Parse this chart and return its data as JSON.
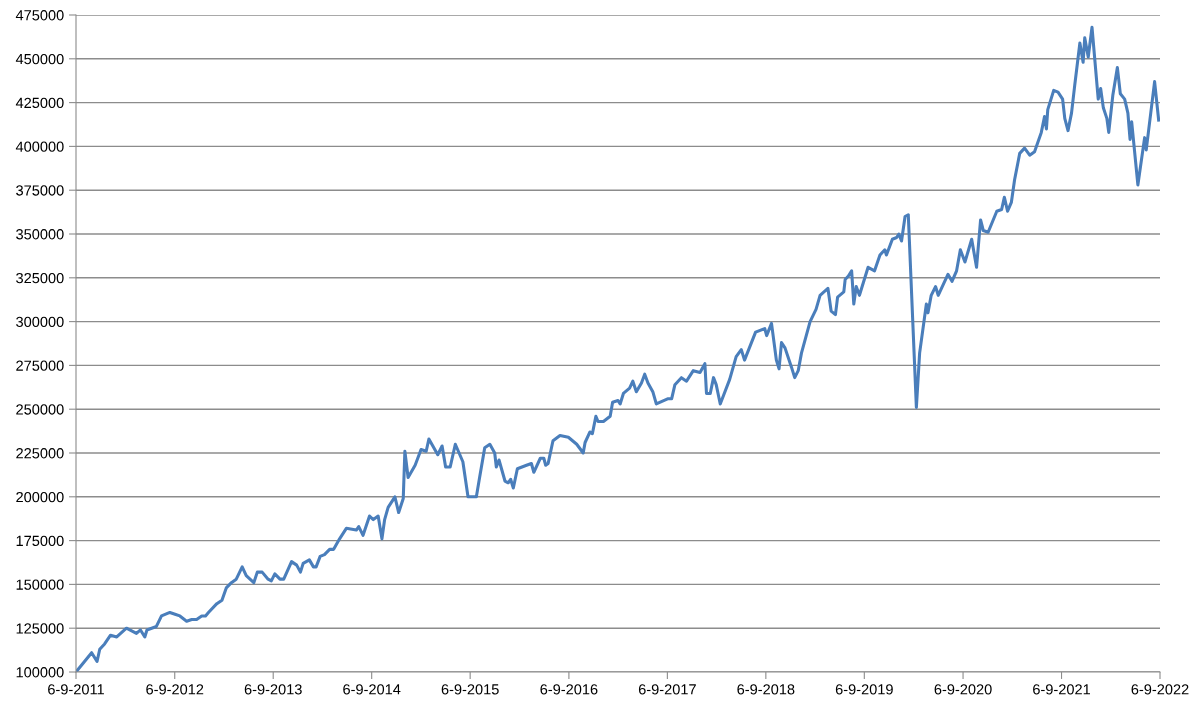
{
  "chart_data": {
    "type": "line",
    "x": [
      "2011-09-06",
      "2011-11-03",
      "2011-11-23",
      "2011-12-03",
      "2011-12-21",
      "2012-01-12",
      "2012-02-04",
      "2012-03-11",
      "2012-04-17",
      "2012-05-02",
      "2012-05-18",
      "2012-05-26",
      "2012-06-30",
      "2012-07-19",
      "2012-08-19",
      "2012-09-07",
      "2012-09-25",
      "2012-10-20",
      "2012-11-08",
      "2012-11-26",
      "2012-12-15",
      "2012-12-29",
      "2013-01-09",
      "2013-02-09",
      "2013-02-28",
      "2013-03-16",
      "2013-04-04",
      "2013-04-22",
      "2013-05-14",
      "2013-05-29",
      "2013-06-26",
      "2013-07-09",
      "2013-07-27",
      "2013-08-18",
      "2013-08-30",
      "2013-09-12",
      "2013-10-01",
      "2013-10-15",
      "2013-11-13",
      "2013-12-02",
      "2013-12-16",
      "2013-12-26",
      "2014-01-18",
      "2014-02-02",
      "2014-02-12",
      "2014-02-27",
      "2014-03-15",
      "2014-04-03",
      "2014-04-18",
      "2014-05-10",
      "2014-06-04",
      "2014-07-11",
      "2014-07-20",
      "2014-08-05",
      "2014-08-29",
      "2014-09-12",
      "2014-09-30",
      "2014-10-14",
      "2014-10-24",
      "2014-11-06",
      "2014-12-01",
      "2014-12-15",
      "2015-01-01",
      "2015-01-07",
      "2015-01-19",
      "2015-02-14",
      "2015-03-08",
      "2015-03-27",
      "2015-04-06",
      "2015-05-09",
      "2015-05-25",
      "2015-06-07",
      "2015-06-24",
      "2015-07-13",
      "2015-08-10",
      "2015-08-29",
      "2015-09-29",
      "2015-10-11",
      "2015-10-30",
      "2015-11-18",
      "2015-12-06",
      "2015-12-12",
      "2015-12-22",
      "2016-01-13",
      "2016-01-25",
      "2016-02-03",
      "2016-02-13",
      "2016-02-28",
      "2016-04-02",
      "2016-04-20",
      "2016-04-29",
      "2016-05-23",
      "2016-06-05",
      "2016-06-12",
      "2016-06-21",
      "2016-07-09",
      "2016-08-04",
      "2016-09-04",
      "2016-10-05",
      "2016-10-29",
      "2016-11-05",
      "2016-11-23",
      "2016-12-02",
      "2016-12-15",
      "2016-12-23",
      "2017-01-12",
      "2017-02-06",
      "2017-02-15",
      "2017-03-07",
      "2017-03-15",
      "2017-03-27",
      "2017-04-19",
      "2017-05-01",
      "2017-05-14",
      "2017-06-02",
      "2017-06-14",
      "2017-06-26",
      "2017-07-14",
      "2017-07-27",
      "2017-09-09",
      "2017-09-22",
      "2017-10-04",
      "2017-10-28",
      "2017-11-16",
      "2017-12-11",
      "2018-01-05",
      "2018-01-23",
      "2018-01-29",
      "2018-02-12",
      "2018-02-24",
      "2018-03-06",
      "2018-03-21",
      "2018-04-25",
      "2018-05-19",
      "2018-06-07",
      "2018-06-19",
      "2018-07-30",
      "2018-09-02",
      "2018-09-09",
      "2018-09-27",
      "2018-10-15",
      "2018-10-25",
      "2018-11-03",
      "2018-11-16",
      "2018-12-10",
      "2018-12-22",
      "2019-01-04",
      "2019-01-16",
      "2019-02-17",
      "2019-03-11",
      "2019-03-26",
      "2019-04-24",
      "2019-05-06",
      "2019-05-22",
      "2019-05-30",
      "2019-06-22",
      "2019-06-27",
      "2019-07-09",
      "2019-07-21",
      "2019-07-29",
      "2019-08-07",
      "2019-08-19",
      "2019-09-20",
      "2019-10-14",
      "2019-11-03",
      "2019-11-21",
      "2019-11-27",
      "2019-12-19",
      "2020-01-04",
      "2020-01-12",
      "2020-01-22",
      "2020-02-04",
      "2020-02-16",
      "2020-03-17",
      "2020-03-29",
      "2020-04-23",
      "2020-04-29",
      "2020-05-11",
      "2020-05-27",
      "2020-06-06",
      "2020-07-12",
      "2020-07-27",
      "2020-08-13",
      "2020-08-27",
      "2020-09-13",
      "2020-10-08",
      "2020-10-26",
      "2020-11-10",
      "2020-11-20",
      "2020-12-08",
      "2021-01-09",
      "2021-01-27",
      "2021-02-06",
      "2021-02-18",
      "2021-03-04",
      "2021-03-16",
      "2021-04-04",
      "2021-04-22",
      "2021-05-11",
      "2021-05-29",
      "2021-06-23",
      "2021-07-05",
      "2021-07-12",
      "2021-07-17",
      "2021-08-08",
      "2021-08-24",
      "2021-09-10",
      "2021-09-18",
      "2021-09-30",
      "2021-10-13",
      "2021-10-25",
      "2021-11-13",
      "2021-11-25",
      "2021-12-01",
      "2021-12-14",
      "2021-12-28",
      "2022-01-20",
      "2022-01-29",
      "2022-02-08",
      "2022-02-21",
      "2022-02-28",
      "2022-03-15",
      "2022-04-01",
      "2022-04-12",
      "2022-04-28",
      "2022-05-10",
      "2022-05-18",
      "2022-05-24",
      "2022-06-16",
      "2022-07-11",
      "2022-07-17",
      "2022-08-17",
      "2022-09-01"
    ],
    "series": [
      {
        "color": "#4a7ebb",
        "values": [
          100000,
          111000,
          106000,
          113000,
          116000,
          121000,
          120000,
          125000,
          122000,
          124000,
          120000,
          124000,
          126000,
          132000,
          134000,
          133000,
          132000,
          129000,
          130000,
          130000,
          132000,
          132000,
          134000,
          139000,
          141000,
          148000,
          151000,
          153000,
          160000,
          155000,
          151000,
          157000,
          157000,
          153000,
          152000,
          156000,
          153000,
          153000,
          163000,
          161000,
          157000,
          162000,
          164000,
          160000,
          160000,
          166000,
          167000,
          170000,
          170000,
          176000,
          182000,
          181000,
          183000,
          178000,
          189000,
          187000,
          189000,
          176000,
          187000,
          194000,
          200000,
          191000,
          199000,
          226000,
          211000,
          218000,
          227000,
          226000,
          233000,
          224000,
          229000,
          217000,
          217000,
          230000,
          220000,
          200000,
          200000,
          211000,
          228000,
          230000,
          225000,
          217000,
          221000,
          209000,
          208000,
          210000,
          205000,
          216000,
          218000,
          219000,
          214000,
          222000,
          222000,
          218000,
          219000,
          232000,
          235000,
          234000,
          230000,
          225000,
          231000,
          237000,
          236000,
          246000,
          243000,
          243000,
          246000,
          254000,
          255000,
          253000,
          259000,
          262000,
          266000,
          260000,
          265000,
          270000,
          265000,
          260000,
          253000,
          256000,
          256000,
          264000,
          268000,
          266000,
          272000,
          271000,
          276000,
          259000,
          259000,
          268000,
          264000,
          253000,
          267000,
          280000,
          284000,
          278000,
          294000,
          296000,
          292000,
          299000,
          278000,
          273000,
          288000,
          285000,
          274000,
          268000,
          272000,
          282000,
          300000,
          307000,
          315000,
          319000,
          306000,
          304000,
          314000,
          317000,
          324000,
          326000,
          329000,
          310000,
          320000,
          315000,
          331000,
          329000,
          338000,
          341000,
          338000,
          347000,
          348000,
          350000,
          346000,
          360000,
          361000,
          251000,
          282000,
          310000,
          305000,
          315000,
          320000,
          315000,
          327000,
          323000,
          329000,
          341000,
          334000,
          347000,
          331000,
          358000,
          352000,
          351000,
          363000,
          364000,
          371000,
          363000,
          368000,
          381000,
          396000,
          399000,
          395000,
          397000,
          408000,
          417000,
          410000,
          421000,
          432000,
          431000,
          427000,
          416000,
          409000,
          419000,
          435000,
          459000,
          448000,
          462000,
          451000,
          468000,
          427000,
          433000,
          422000,
          416000,
          408000,
          429000,
          445000,
          430000,
          427000,
          419000,
          404000,
          414000,
          378000,
          405000,
          398000,
          437000,
          415000
        ]
      }
    ],
    "xlim": [
      "2011-09-06",
      "2022-09-06"
    ],
    "xticks": [
      {
        "value": "2011-09-06",
        "label": "6-9-2011"
      },
      {
        "value": "2012-09-06",
        "label": "6-9-2012"
      },
      {
        "value": "2013-09-06",
        "label": "6-9-2013"
      },
      {
        "value": "2014-09-06",
        "label": "6-9-2014"
      },
      {
        "value": "2015-09-06",
        "label": "6-9-2015"
      },
      {
        "value": "2016-09-06",
        "label": "6-9-2016"
      },
      {
        "value": "2017-09-06",
        "label": "6-9-2017"
      },
      {
        "value": "2018-09-06",
        "label": "6-9-2018"
      },
      {
        "value": "2019-09-06",
        "label": "6-9-2019"
      },
      {
        "value": "2020-09-06",
        "label": "6-9-2020"
      },
      {
        "value": "2021-09-06",
        "label": "6-9-2021"
      },
      {
        "value": "2022-09-06",
        "label": "6-9-2022"
      }
    ],
    "ylim": [
      100000,
      475000
    ],
    "yticks": [
      100000,
      125000,
      150000,
      175000,
      200000,
      225000,
      250000,
      275000,
      300000,
      325000,
      350000,
      375000,
      400000,
      425000,
      450000,
      475000
    ],
    "grid": "y",
    "line_style": "solid"
  }
}
